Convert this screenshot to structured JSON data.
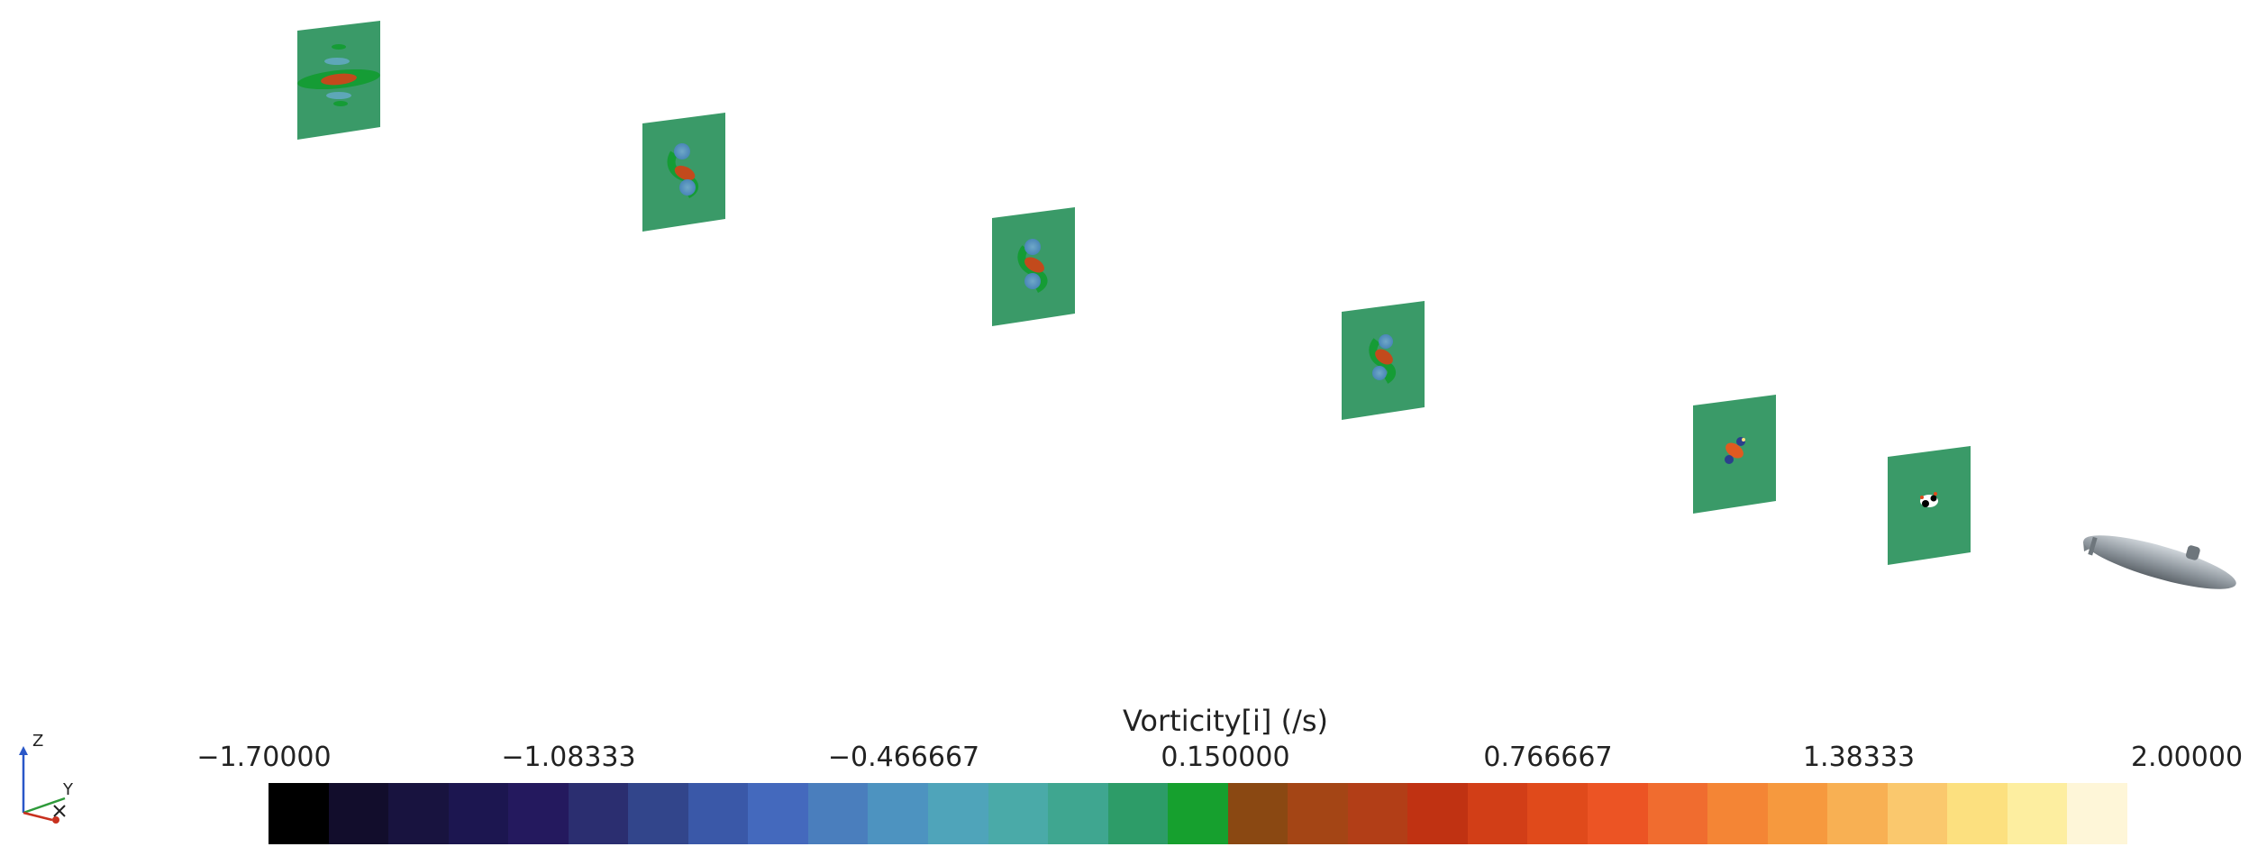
{
  "legend": {
    "title": "Vorticity[i] (/s)",
    "ticks": [
      "−1.70000",
      "−1.08333",
      "−0.466667",
      "0.150000",
      "0.766667",
      "1.38333",
      "2.00000"
    ],
    "colors": [
      "#000000",
      "#120d2c",
      "#18133f",
      "#1c1650",
      "#24195e",
      "#2b2e70",
      "#32458b",
      "#3a58a8",
      "#4469bd",
      "#4a7ebd",
      "#4d93c0",
      "#4fa4ba",
      "#4aaaa8",
      "#3fa690",
      "#2d9c68",
      "#16a02e",
      "#8a4812",
      "#a44515",
      "#b23e17",
      "#c03212",
      "#d23e17",
      "#e04a1b",
      "#ec5424",
      "#f06c2f",
      "#f48535",
      "#f6993e",
      "#f8b053",
      "#fac86d",
      "#fce07f",
      "#fdeea0",
      "#fef6d8"
    ]
  },
  "axes": {
    "z": "Z",
    "y": "Y"
  },
  "colors": {
    "slice": "#3a9a68",
    "hull": "#9ea6ac"
  }
}
